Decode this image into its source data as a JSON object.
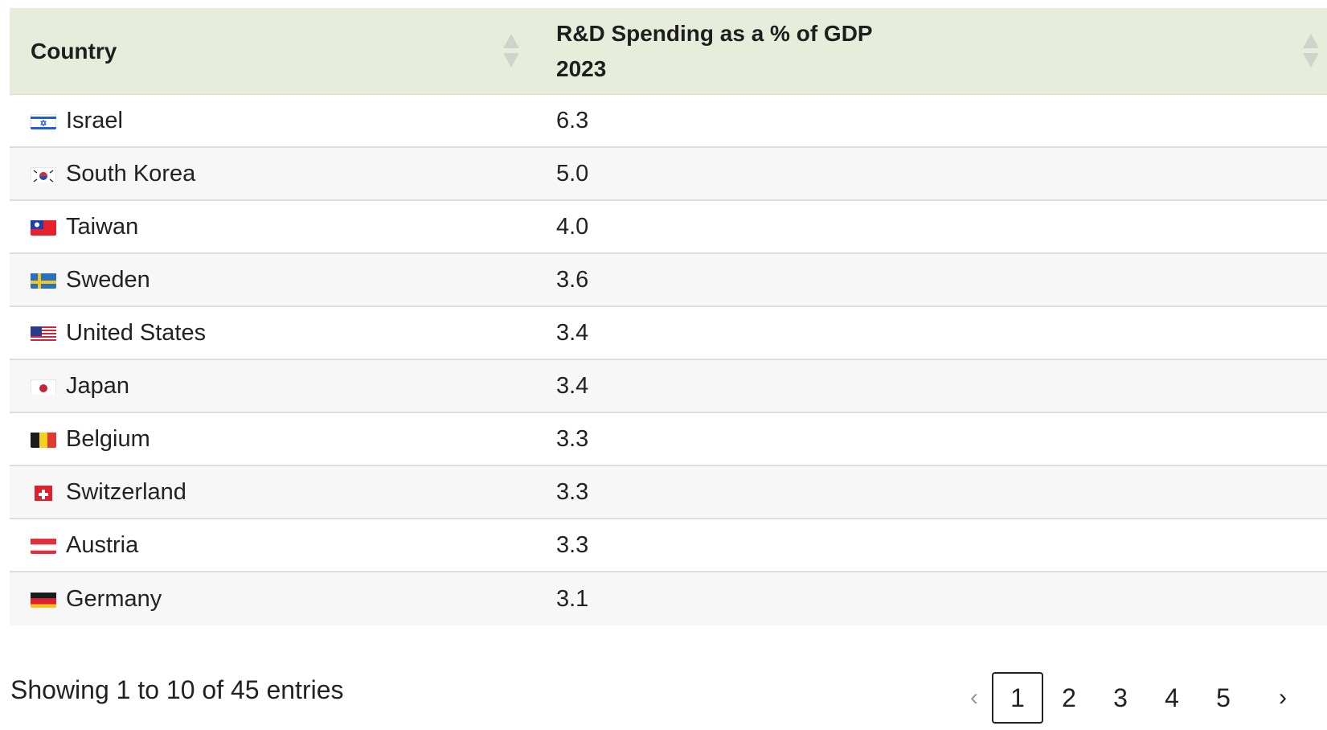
{
  "table": {
    "columns": [
      {
        "label": "Country"
      },
      {
        "label_line1": "R&D Spending as a % of GDP",
        "label_line2": "2023"
      }
    ],
    "rows": [
      {
        "country": "Israel",
        "value": "6.3",
        "flag": "flag-israel"
      },
      {
        "country": "South Korea",
        "value": "5.0",
        "flag": "flag-south-korea"
      },
      {
        "country": "Taiwan",
        "value": "4.0",
        "flag": "flag-taiwan"
      },
      {
        "country": "Sweden",
        "value": "3.6",
        "flag": "flag-sweden"
      },
      {
        "country": "United States",
        "value": "3.4",
        "flag": "flag-united-states"
      },
      {
        "country": "Japan",
        "value": "3.4",
        "flag": "flag-japan"
      },
      {
        "country": "Belgium",
        "value": "3.3",
        "flag": "flag-belgium"
      },
      {
        "country": "Switzerland",
        "value": "3.3",
        "flag": "flag-switzerland"
      },
      {
        "country": "Austria",
        "value": "3.3",
        "flag": "flag-austria"
      },
      {
        "country": "Germany",
        "value": "3.1",
        "flag": "flag-germany"
      }
    ]
  },
  "footer": {
    "info": "Showing 1 to 10 of 45 entries"
  },
  "pagination": {
    "prev_label": "‹",
    "next_label": "›",
    "pages": [
      "1",
      "2",
      "3",
      "4",
      "5"
    ],
    "current": "1"
  },
  "colors": {
    "header_bg": "#e6eedb",
    "stripe_bg": "#f7f7f7",
    "border": "#dcdcdc"
  }
}
